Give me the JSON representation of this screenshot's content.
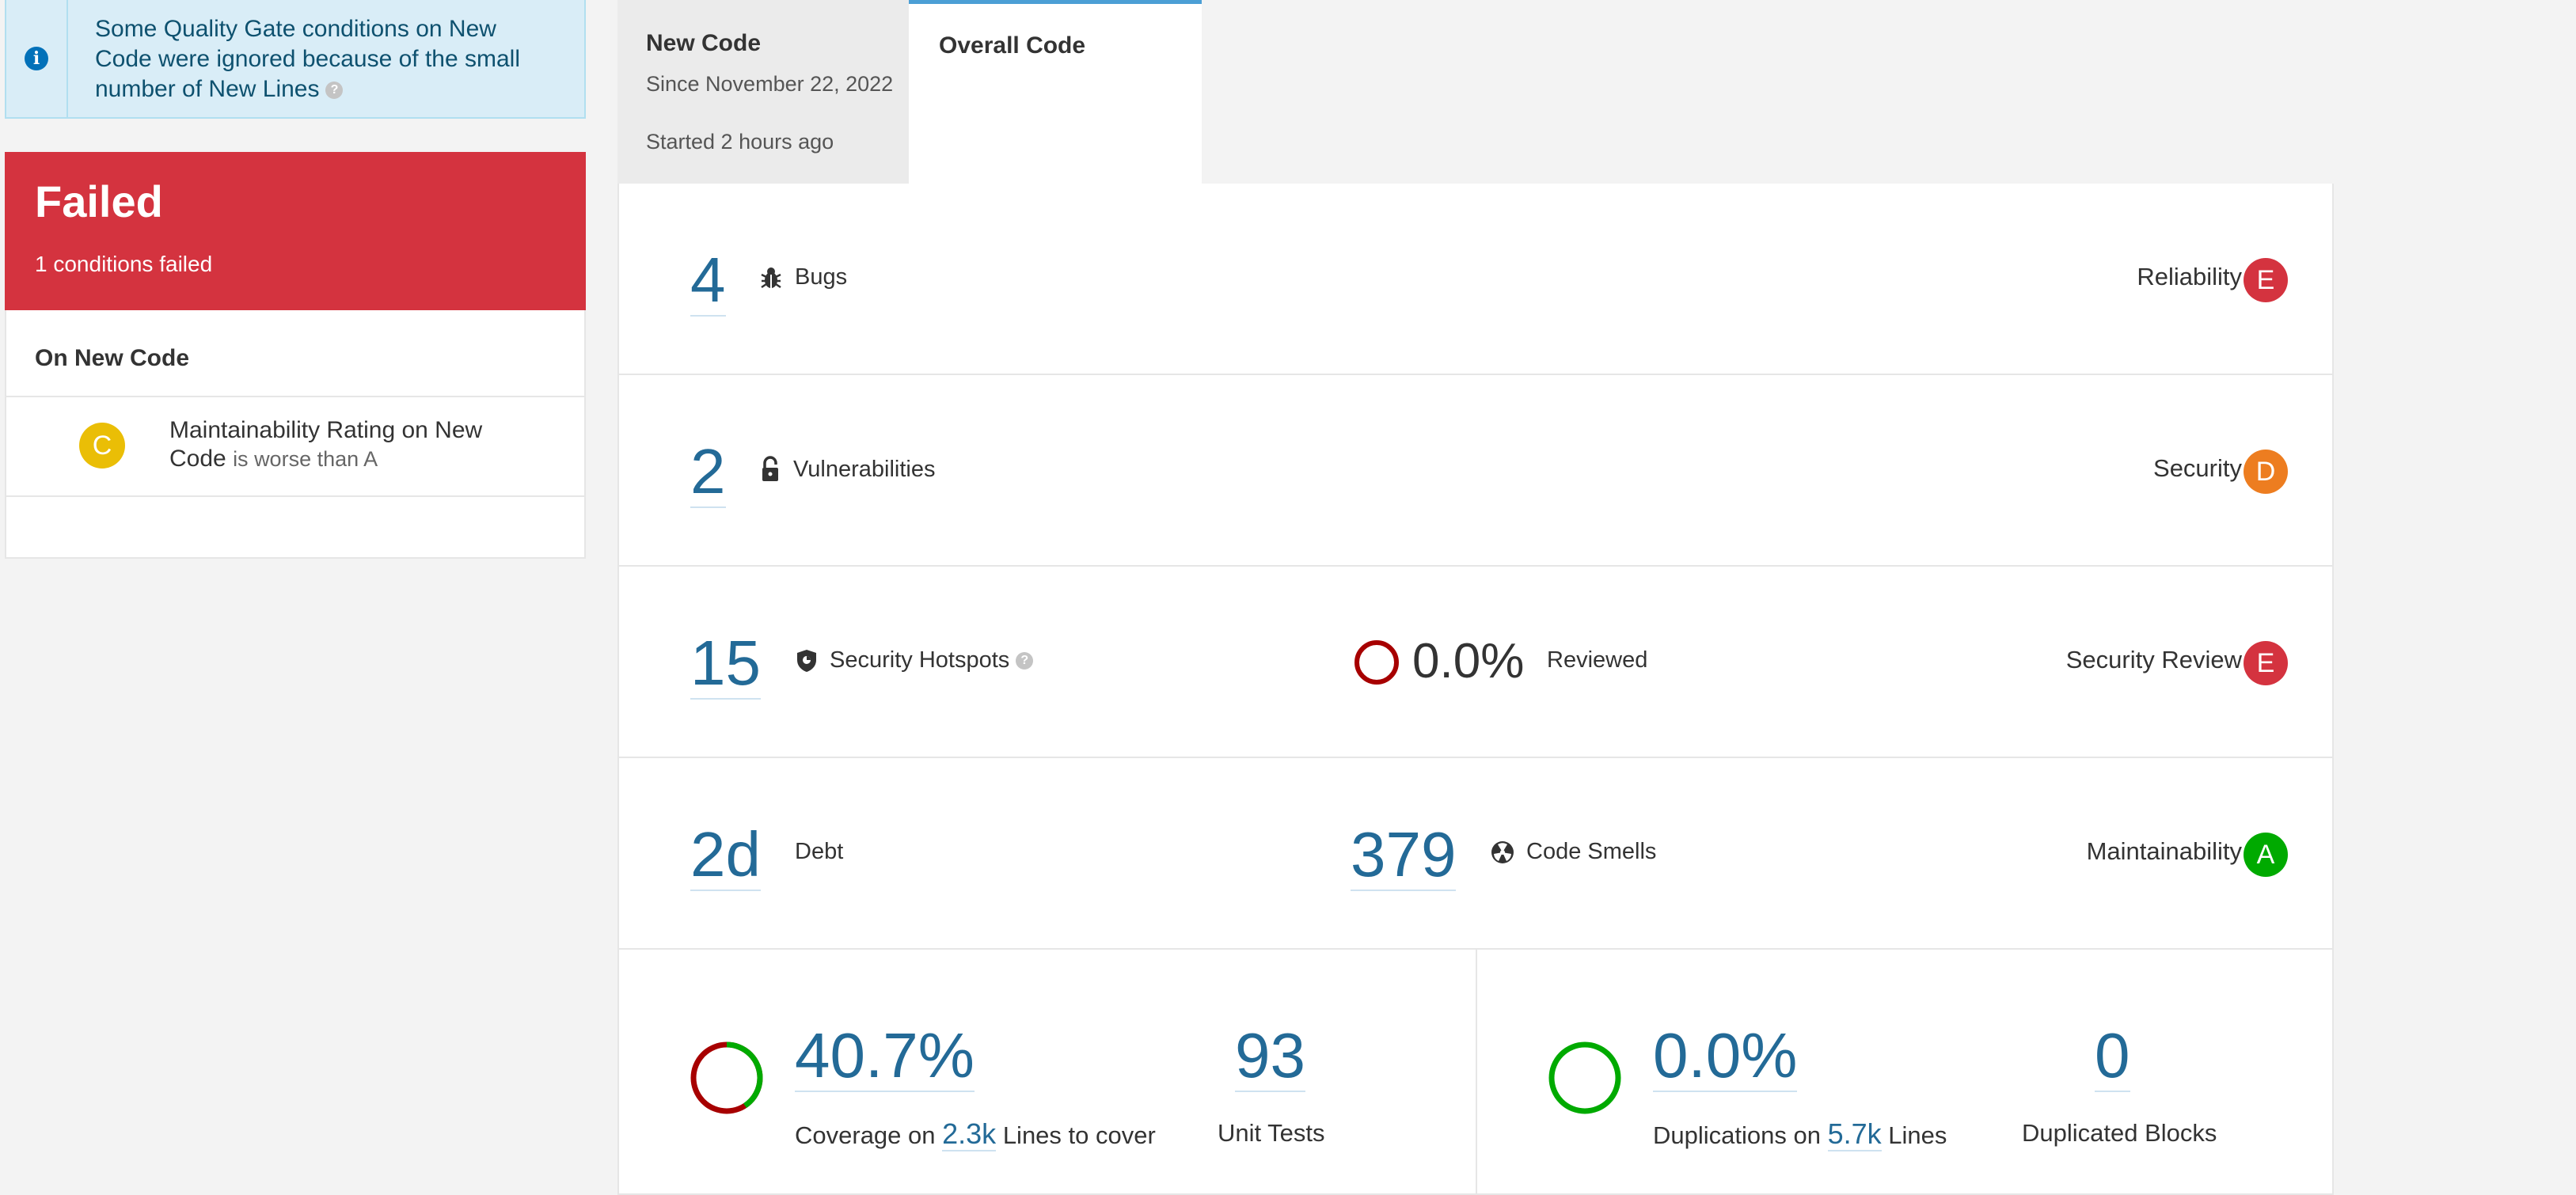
{
  "banner": {
    "text": "Some Quality Gate conditions on New Code were ignored because of the small number of New Lines",
    "help": "?"
  },
  "quality_gate": {
    "status": "Failed",
    "summary": "1 conditions failed",
    "section_title": "On New Code",
    "condition": {
      "rating": "C",
      "metric": "Maintainability Rating on New Code",
      "operator": "is worse than A",
      "color": "#eabe06"
    }
  },
  "tabs": {
    "new_code": {
      "label": "New Code",
      "since": "Since November 22, 2022",
      "started": "Started 2 hours ago"
    },
    "overall_code": {
      "label": "Overall Code"
    }
  },
  "metrics": {
    "bugs": {
      "value": "4",
      "label": "Bugs",
      "category": "Reliability",
      "rating": "E",
      "rating_color": "#d4333f",
      "icon": "bug-icon"
    },
    "vulnerabilities": {
      "value": "2",
      "label": "Vulnerabilities",
      "category": "Security",
      "rating": "D",
      "rating_color": "#ed7d20",
      "icon": "unlock-icon"
    },
    "hotspots": {
      "value": "15",
      "label": "Security Hotspots",
      "help": "?",
      "reviewed_pct": "0.0%",
      "reviewed_label": "Reviewed",
      "category": "Security Review",
      "rating": "E",
      "rating_color": "#d4333f",
      "icon": "shield-icon"
    },
    "maintainability": {
      "debt": "2d",
      "debt_label": "Debt",
      "smells": "379",
      "smells_label": "Code Smells",
      "category": "Maintainability",
      "rating": "A",
      "rating_color": "#00aa00",
      "icon": "code-smell-icon"
    },
    "coverage": {
      "value": "40.7%",
      "label_prefix": "Coverage on",
      "lines": "2.3k",
      "label_suffix": "Lines to cover",
      "fraction": 0.407,
      "unit_tests": "93",
      "unit_tests_label": "Unit Tests"
    },
    "duplications": {
      "value": "0.0%",
      "label_prefix": "Duplications on",
      "lines": "5.7k",
      "label_suffix": "Lines",
      "blocks": "0",
      "blocks_label": "Duplicated Blocks"
    }
  }
}
